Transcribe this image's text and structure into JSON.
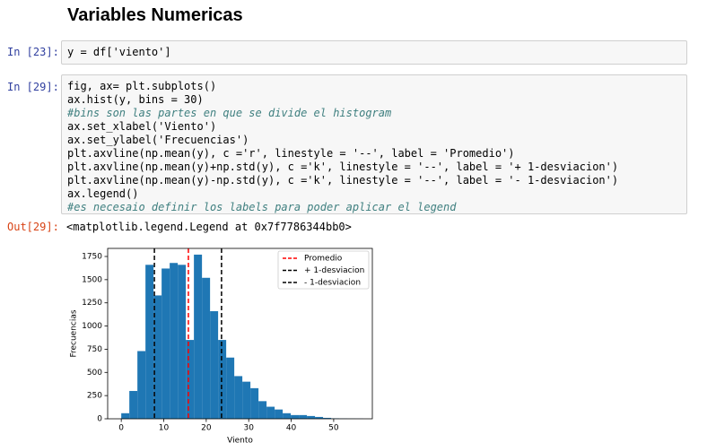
{
  "header": {
    "title": "Variables Numericas"
  },
  "cells": [
    {
      "prompt": "In [23]:",
      "code": [
        "y = df['viento']"
      ]
    },
    {
      "prompt": "In [29]:",
      "code": [
        "fig, ax= plt.subplots()",
        "ax.hist(y, bins = 30)",
        "#bins son las partes en que se divide el histogram",
        "ax.set_xlabel('Viento')",
        "ax.set_ylabel('Frecuencias')",
        "plt.axvline(np.mean(y), c ='r', linestyle = '--', label = 'Promedio')",
        "plt.axvline(np.mean(y)+np.std(y), c ='k', linestyle = '--', label = '+ 1-desviacion')",
        "plt.axvline(np.mean(y)-np.std(y), c ='k', linestyle = '--', label = '- 1-desviacion')",
        "ax.legend()",
        "#es necesaio definir los labels para poder aplicar el legend"
      ]
    }
  ],
  "output": {
    "prompt": "Out[29]:",
    "text": "<matplotlib.legend.Legend at 0x7f7786344bb0>"
  },
  "chart_data": {
    "type": "histogram",
    "xlabel": "Viento",
    "ylabel": "Frecuencias",
    "bins": [
      0,
      1.9,
      3.8,
      5.7,
      7.6,
      9.5,
      11.4,
      13.3,
      15.2,
      17.1,
      19,
      20.9,
      22.8,
      24.7,
      26.6,
      28.5,
      30.4,
      32.3,
      34.2,
      36.1,
      38,
      39.9,
      41.8,
      43.7,
      45.6,
      47.5,
      49.4,
      51.3,
      53.2,
      55.1,
      57
    ],
    "values": [
      60,
      300,
      730,
      1660,
      1330,
      1620,
      1680,
      1660,
      850,
      1770,
      1520,
      1160,
      850,
      660,
      460,
      400,
      330,
      190,
      130,
      100,
      60,
      40,
      40,
      30,
      20,
      10,
      5,
      3,
      2,
      1
    ],
    "color": "#1f77b4",
    "xlim": [
      -3.2,
      59.1
    ],
    "ylim": [
      0,
      1837
    ],
    "xticks": [
      0,
      10,
      20,
      30,
      40,
      50
    ],
    "yticks": [
      0,
      250,
      500,
      750,
      1000,
      1250,
      1500,
      1750
    ],
    "vlines": [
      {
        "name": "Promedio",
        "color": "#ff0000",
        "value": 15.8
      },
      {
        "name": "+ 1-desviacion",
        "color": "#000000",
        "value": 23.6
      },
      {
        "name": "- 1-desviacion",
        "color": "#000000",
        "value": 7.8
      }
    ],
    "legend": "upper right"
  }
}
